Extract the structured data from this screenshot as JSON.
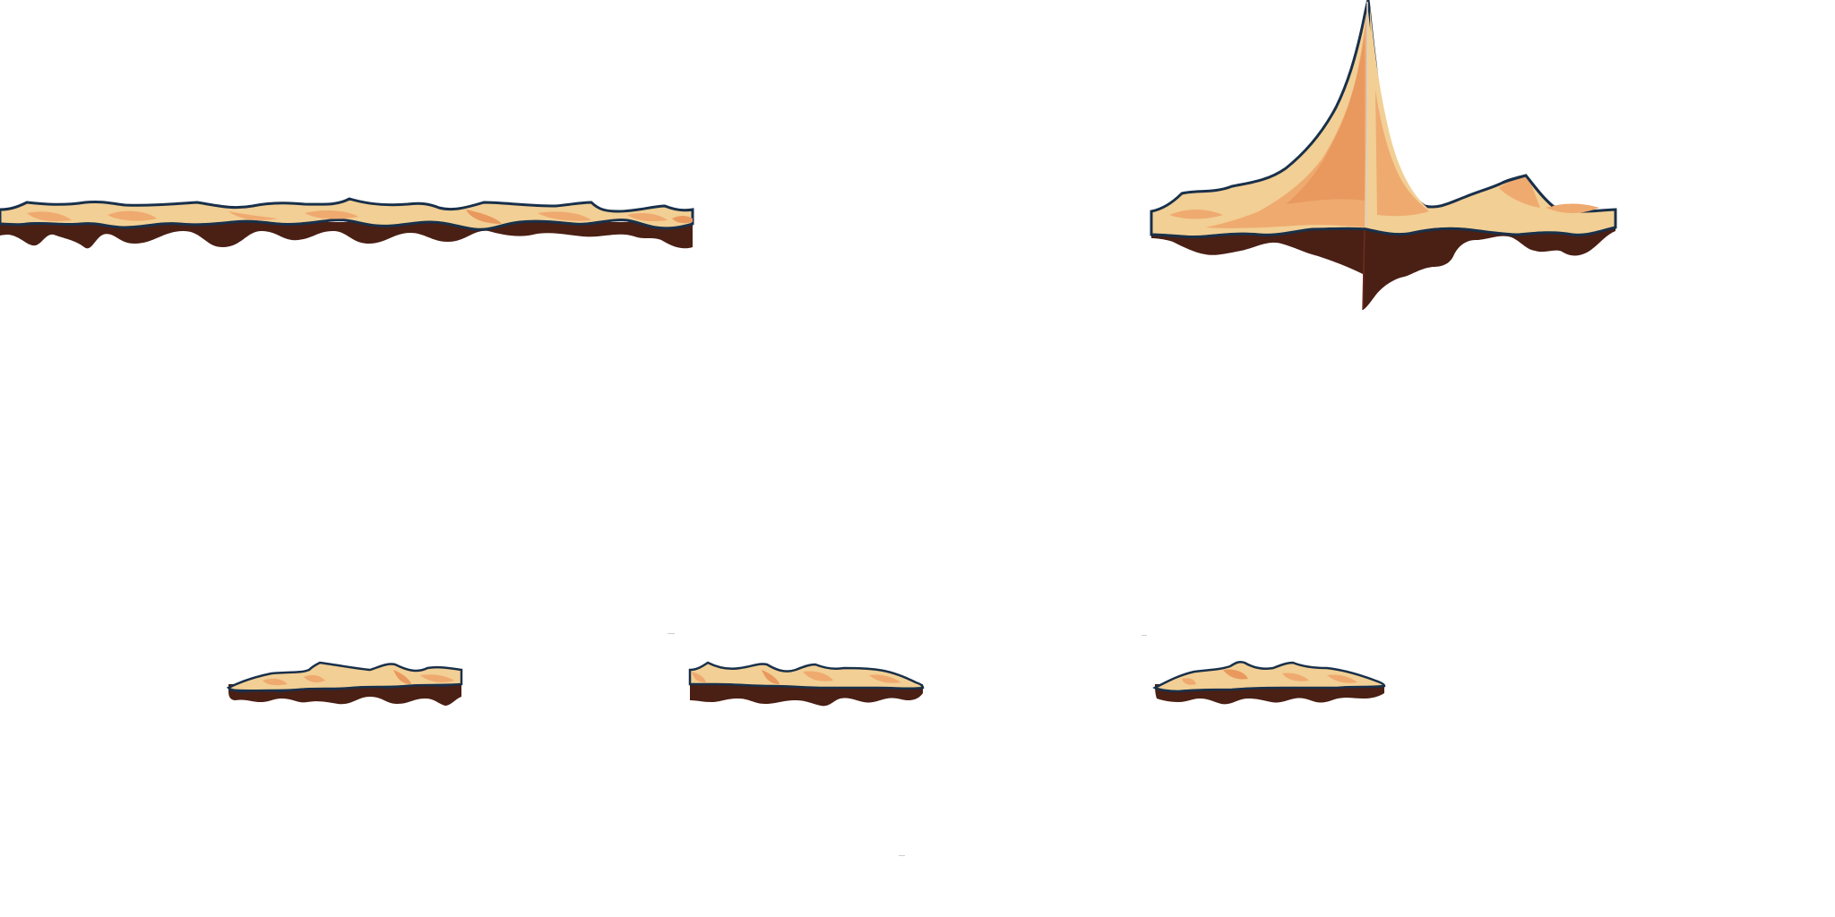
{
  "sprite_sheet": {
    "background": "#ffffff",
    "palette": {
      "sand_light": "#f2cf94",
      "sand_mid": "#efaa70",
      "sand_dark": "#e9995e",
      "outline": "#19304a",
      "soil": "#4a1f14"
    },
    "tiles": [
      {
        "name": "sand-ground-long-tile"
      },
      {
        "name": "sand-spire-tile"
      },
      {
        "name": "sand-platform-small-tile-1"
      },
      {
        "name": "sand-platform-small-tile-2"
      },
      {
        "name": "sand-platform-small-tile-3"
      }
    ]
  }
}
